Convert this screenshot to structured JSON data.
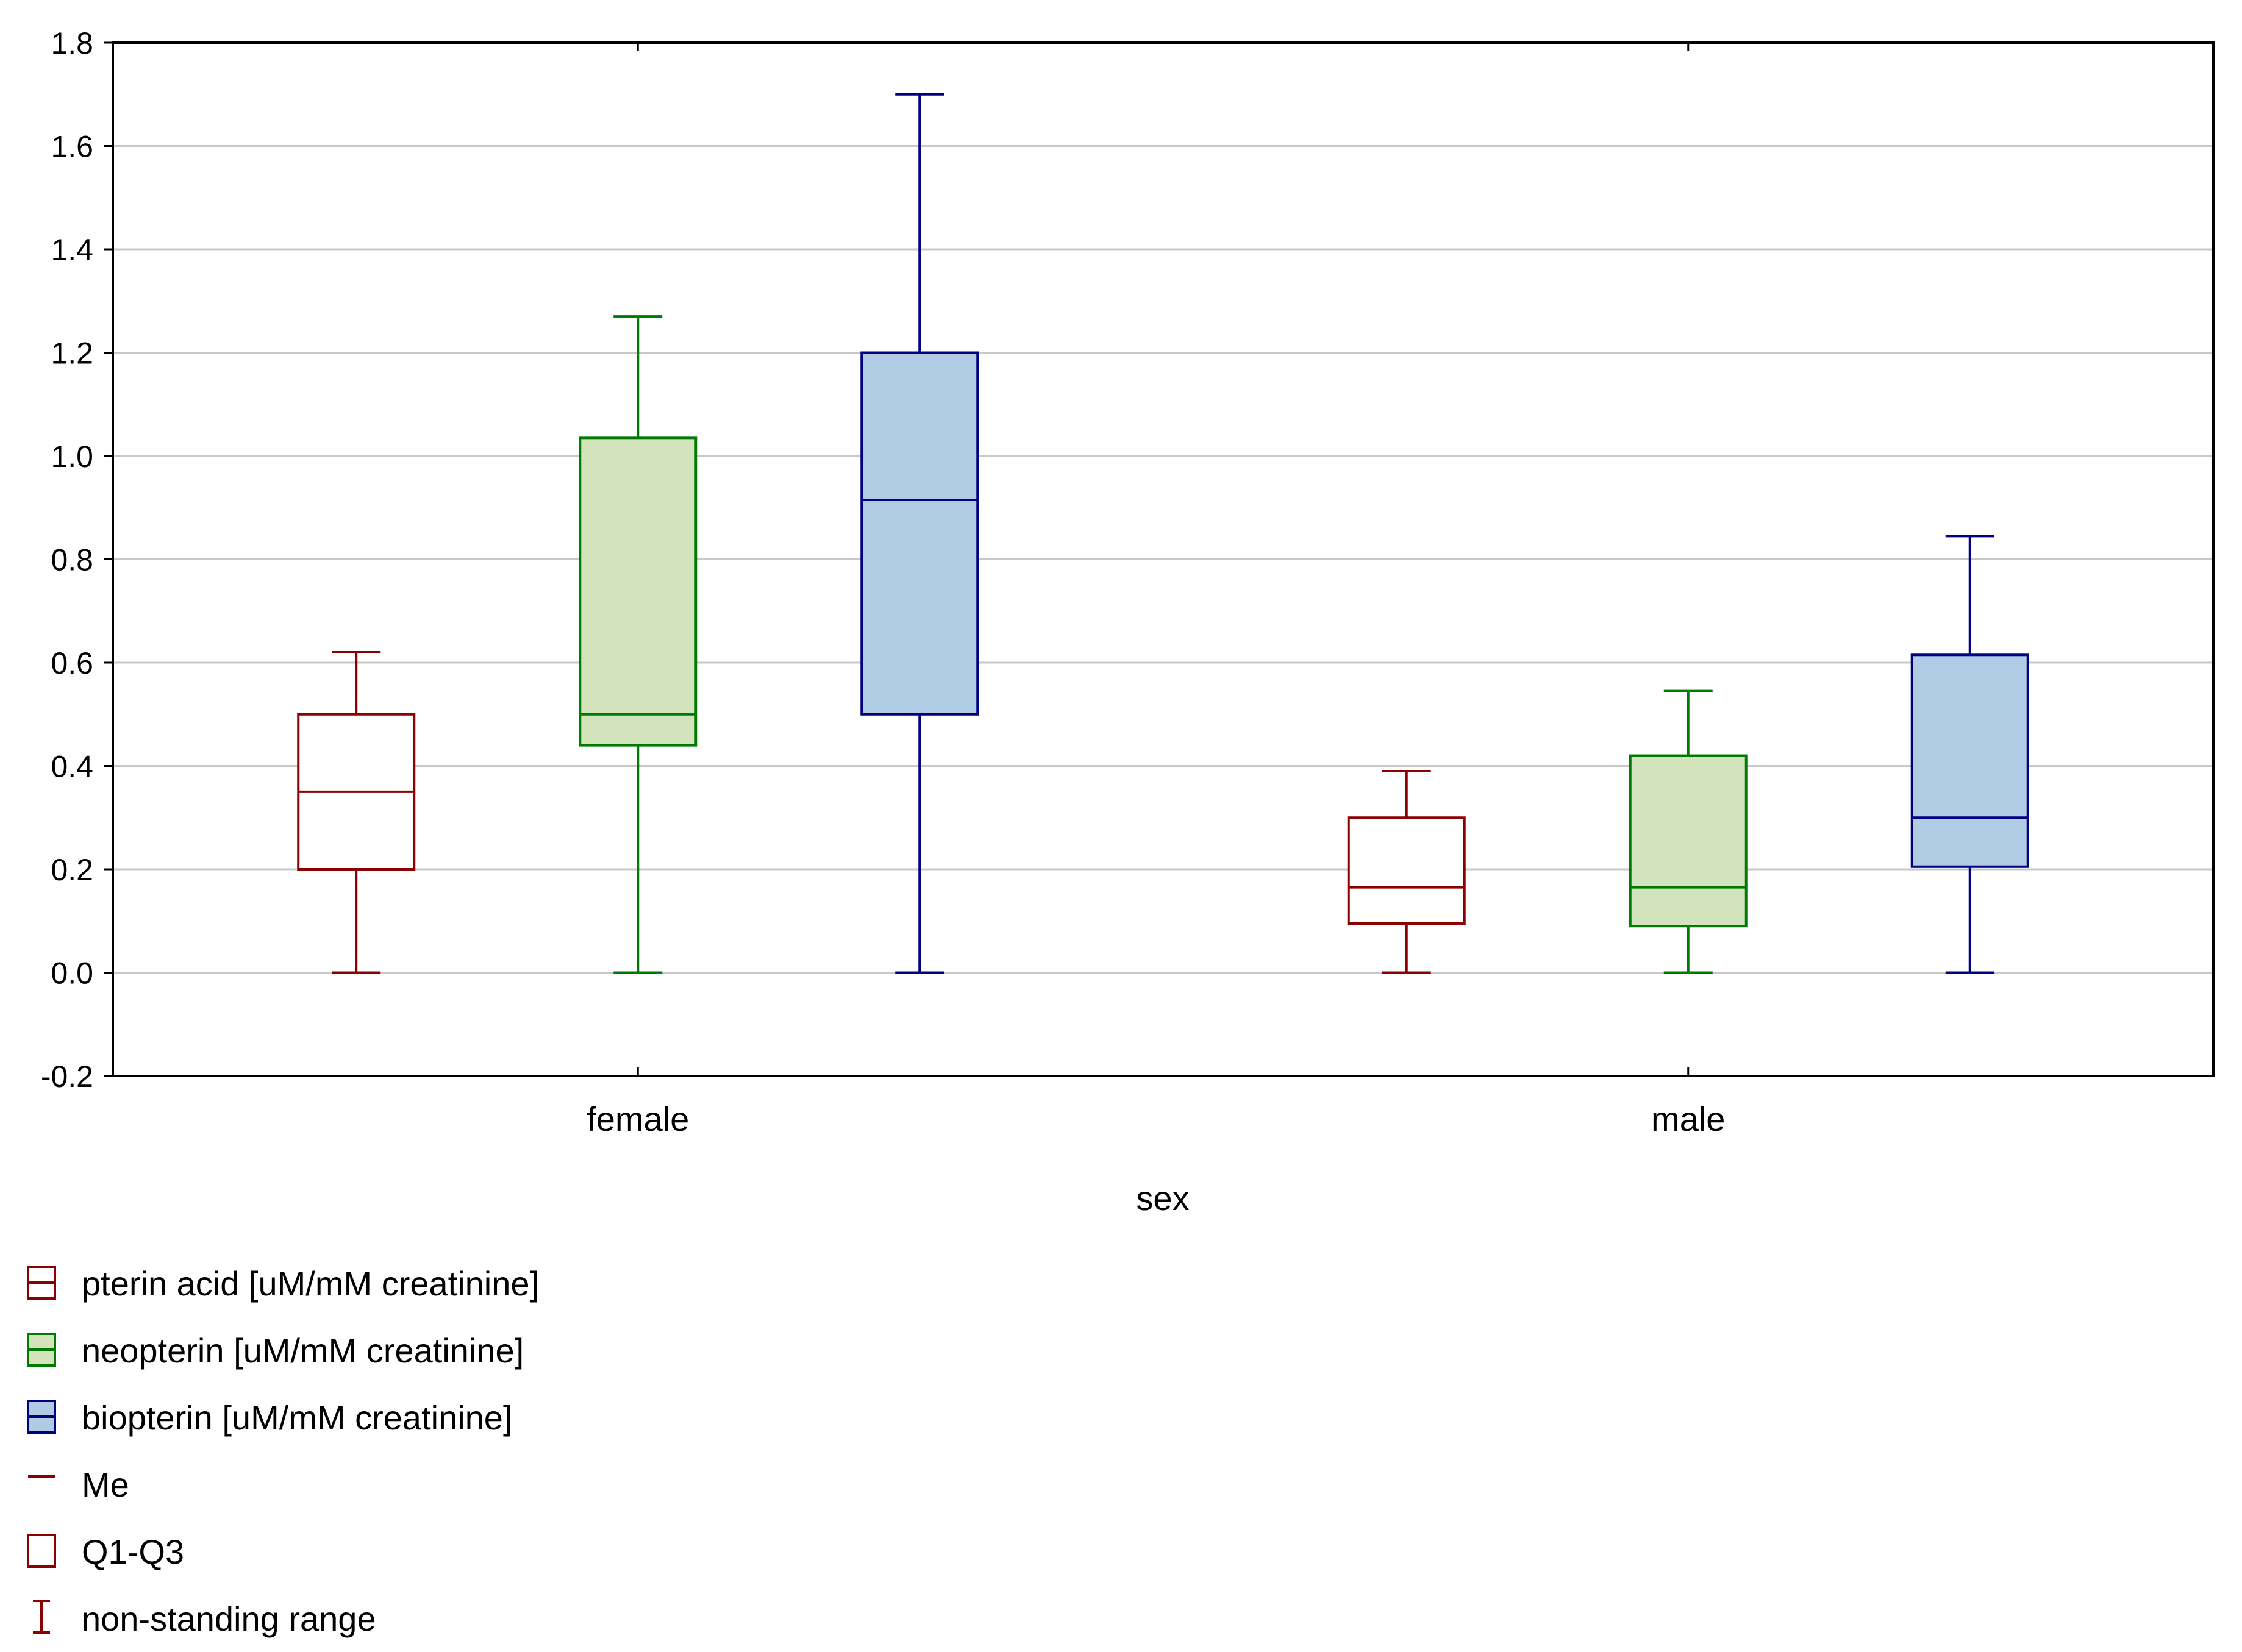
{
  "chart_data": {
    "type": "box",
    "title": "",
    "xlabel": "sex",
    "ylabel": "",
    "ylim": [
      -0.2,
      1.8
    ],
    "yticks": [
      -0.2,
      0.0,
      0.2,
      0.4,
      0.6,
      0.8,
      1.0,
      1.2,
      1.4,
      1.6,
      1.8
    ],
    "ytick_labels": [
      "-0.2",
      "0.0",
      "0.2",
      "0.4",
      "0.6",
      "0.8",
      "1.0",
      "1.2",
      "1.4",
      "1.6",
      "1.8"
    ],
    "grid": true,
    "categories": [
      "female",
      "male"
    ],
    "series": [
      {
        "name": "pterin acid [uM/mM creatinine]",
        "color": "#8b0000",
        "fill": "#ffffff",
        "boxes": [
          {
            "min": 0.0,
            "q1": 0.2,
            "median": 0.35,
            "q3": 0.5,
            "max": 0.62
          },
          {
            "min": 0.0,
            "q1": 0.095,
            "median": 0.165,
            "q3": 0.3,
            "max": 0.39
          }
        ]
      },
      {
        "name": "neopterin [uM/mM creatinine]",
        "color": "#007a00",
        "fill": "#d3e4bd",
        "boxes": [
          {
            "min": 0.0,
            "q1": 0.44,
            "median": 0.5,
            "q3": 1.035,
            "max": 1.27
          },
          {
            "min": 0.0,
            "q1": 0.09,
            "median": 0.165,
            "q3": 0.42,
            "max": 0.545
          }
        ]
      },
      {
        "name": "biopterin [uM/mM creatinine]",
        "color": "#000080",
        "fill": "#b0cbe4",
        "boxes": [
          {
            "min": 0.0,
            "q1": 0.5,
            "median": 0.915,
            "q3": 1.2,
            "max": 1.7
          },
          {
            "min": 0.0,
            "q1": 0.205,
            "median": 0.3,
            "q3": 0.615,
            "max": 0.845
          }
        ]
      }
    ],
    "legend": {
      "placement": "bottom-left",
      "extra_items": [
        {
          "label": "Me",
          "icon": "median-line-icon"
        },
        {
          "label": "Q1-Q3",
          "icon": "quartile-box-icon"
        },
        {
          "label": "non-standing range",
          "icon": "range-whisker-icon"
        }
      ]
    }
  }
}
